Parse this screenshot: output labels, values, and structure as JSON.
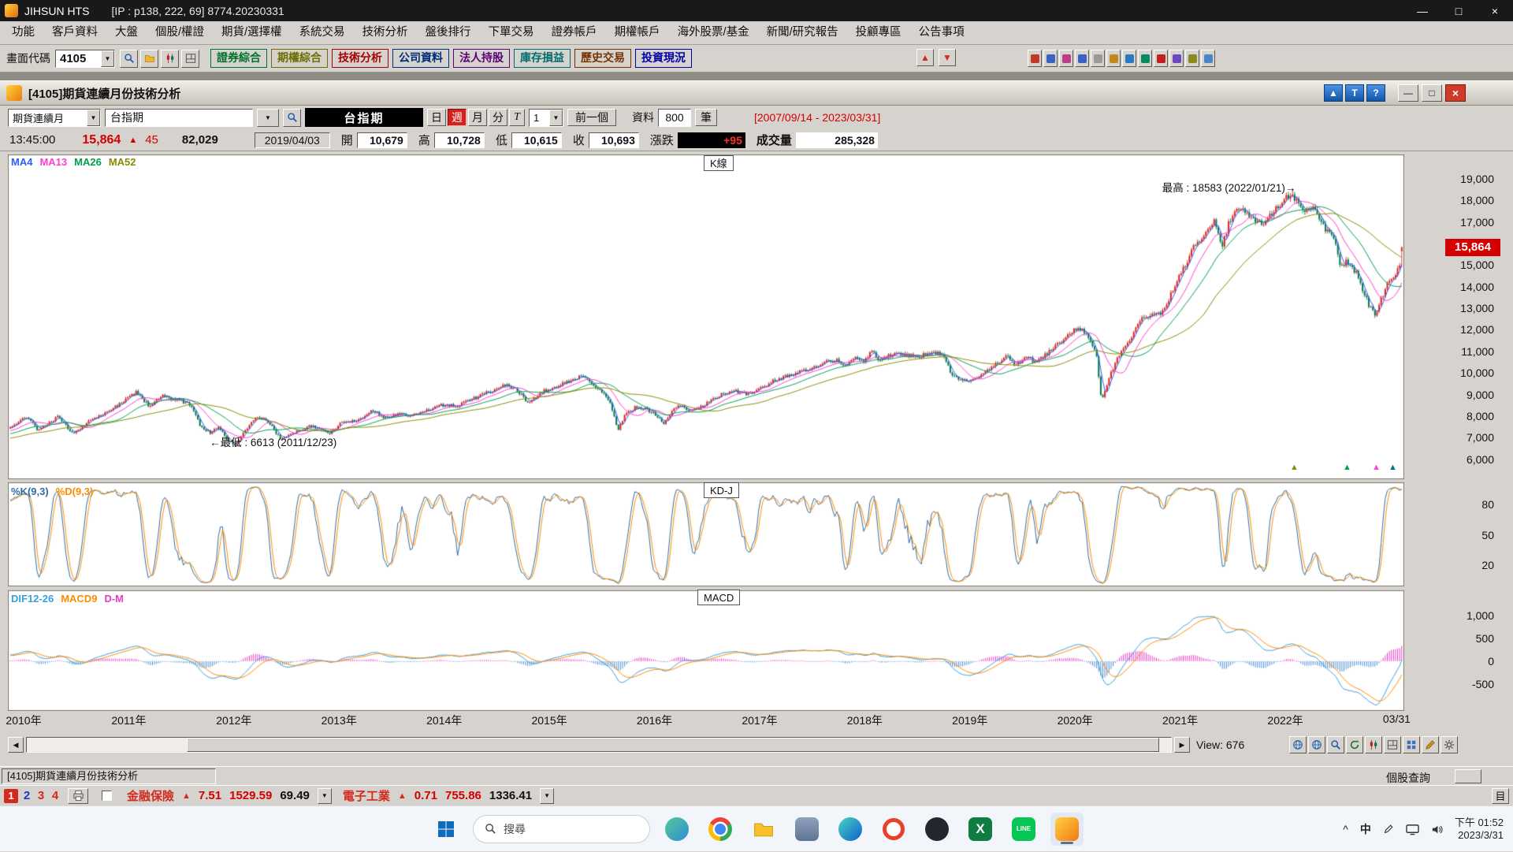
{
  "titlebar": {
    "title": "JIHSUN HTS",
    "info": "[IP : p138, 222, 69] 8774.20230331",
    "buttons": {
      "minimize": "—",
      "maximize": "□",
      "close": "×"
    }
  },
  "menubar": {
    "items": [
      "功能",
      "客戶資料",
      "大盤",
      "個股/權證",
      "期貨/選擇權",
      "系統交易",
      "技術分析",
      "盤後排行",
      "下單交易",
      "證券帳戶",
      "期權帳戶",
      "海外股票/基金",
      "新聞/研究報告",
      "投顧專區",
      "公告事項"
    ]
  },
  "toolbar": {
    "screen_code_label": "畫面代碼",
    "screen_code_value": "4105",
    "icon_buttons": [
      {
        "name": "search-icon",
        "icon": "zoom"
      },
      {
        "name": "folder-icon",
        "icon": "folder"
      },
      {
        "name": "chart-icon",
        "icon": "candle"
      },
      {
        "name": "screen-icon",
        "icon": "layout"
      }
    ],
    "quick_buttons": [
      {
        "label": "證券綜合",
        "color": "#00702d"
      },
      {
        "label": "期權綜合",
        "color": "#6e6e00"
      },
      {
        "label": "技術分析",
        "color": "#a80000"
      },
      {
        "label": "公司資料",
        "color": "#002d78"
      },
      {
        "label": "法人持股",
        "color": "#5a0078"
      },
      {
        "label": "庫存損益",
        "color": "#006e6e"
      },
      {
        "label": "歷史交易",
        "color": "#783200"
      },
      {
        "label": "投資現況",
        "color": "#0000a8"
      }
    ],
    "order_buttons": [
      {
        "name": "buy-arrow-icon",
        "glyph": "▲"
      },
      {
        "name": "sell-arrow-icon",
        "glyph": "▼"
      }
    ],
    "mini_icon_colors": [
      "#c03a2a",
      "#3a62c0",
      "#c03a8a",
      "#3a62c0",
      "#9a9a9a",
      "#c08a20",
      "#2a7ac0",
      "#0a8a60",
      "#c02020",
      "#6a48c0",
      "#8a8a20",
      "#4a86c8"
    ]
  },
  "window": {
    "title": "[4105]期貨連續月份技術分析",
    "blue_buttons": [
      {
        "name": "pin-top-button",
        "glyph": "▲"
      },
      {
        "name": "template-button",
        "glyph": "T"
      },
      {
        "name": "help-button",
        "glyph": "?"
      }
    ],
    "controls": {
      "minimize": "—",
      "restore": "□",
      "close": "×"
    }
  },
  "controls": {
    "series_select": "期貨連續月",
    "symbol_input": "台指期",
    "symbol_display": "台指期",
    "period_buttons": [
      "日",
      "週",
      "月",
      "分",
      "T"
    ],
    "active_period": "週",
    "interval_value": "1",
    "prev_button": "前一個",
    "data_label": "資料",
    "data_count": "800",
    "unit_button": "筆",
    "date_range": "[2007/09/14 - 2023/03/31]"
  },
  "quote": {
    "time": "13:45:00",
    "price": "15,864",
    "change_icon": "▲",
    "change": "45",
    "volume_total": "82,029",
    "bar_date": "2019/04/03",
    "open_label": "開",
    "open": "10,679",
    "high_label": "高",
    "high": "10,728",
    "low_label": "低",
    "low": "10,615",
    "close_label": "收",
    "close": "10,693",
    "chg_label": "漲跌",
    "chg": "+95",
    "vol_label": "成交量",
    "vol": "285,328"
  },
  "chart_data": {
    "type": "candlestick",
    "title": "[4105]期貨連續月份技術分析",
    "symbol": "台指期",
    "period": "週",
    "bar_count": 676,
    "start_year": 2009.85,
    "bars_per_year": 51,
    "ylim": [
      5100,
      20150
    ],
    "price_ticks": [
      "19,000",
      "18,000",
      "17,000",
      "15,000",
      "14,000",
      "13,000",
      "12,000",
      "11,000",
      "10,000",
      "9,000",
      "8,000",
      "7,000",
      "6,000"
    ],
    "price_tick_values": [
      19000,
      18000,
      17000,
      15000,
      14000,
      13000,
      12000,
      11000,
      10000,
      9000,
      8000,
      7000,
      6000
    ],
    "last_price": "15,864",
    "last_price_value": 15864,
    "annotations": {
      "high": {
        "display": "最高 : 18583 (2022/01/21)→",
        "value": 18583,
        "year": 2022.055
      },
      "low": {
        "display": "←最低 : 6613 (2011/12/23)",
        "value": 6613,
        "year": 2011.98
      }
    },
    "panel_labels": {
      "main": "K線",
      "kd": "KD-J",
      "macd": "MACD"
    },
    "legends": {
      "ma": [
        {
          "label": "MA4",
          "color": "#2e5cff"
        },
        {
          "label": "MA13",
          "color": "#ff3dcf"
        },
        {
          "label": "MA26",
          "color": "#00a050"
        },
        {
          "label": "MA52",
          "color": "#8a8a00"
        }
      ],
      "kd": [
        {
          "label": "%K(9,3)",
          "color": "#2e6ea5"
        },
        {
          "label": "%D(9,3)",
          "color": "#ff8c00"
        }
      ],
      "macd": [
        {
          "label": "DIF12-26",
          "color": "#3aa0dc"
        },
        {
          "label": "MACD9",
          "color": "#ff8c00"
        },
        {
          "label": "D-M",
          "color": "#e83cc8"
        }
      ]
    },
    "kd_ticks": [
      80,
      50,
      20
    ],
    "macd_ticks": [
      "1,000",
      "500",
      "0",
      "-500"
    ],
    "macd_tick_values": [
      1000,
      500,
      0,
      -500
    ],
    "macd_ylim": [
      -1090,
      1550
    ],
    "x_ticks": [
      {
        "label": "2010年",
        "year": 2010
      },
      {
        "label": "2011年",
        "year": 2011
      },
      {
        "label": "2012年",
        "year": 2012
      },
      {
        "label": "2013年",
        "year": 2013
      },
      {
        "label": "2014年",
        "year": 2014
      },
      {
        "label": "2015年",
        "year": 2015
      },
      {
        "label": "2016年",
        "year": 2016
      },
      {
        "label": "2017年",
        "year": 2017
      },
      {
        "label": "2018年",
        "year": 2018
      },
      {
        "label": "2019年",
        "year": 2019
      },
      {
        "label": "2020年",
        "year": 2020
      },
      {
        "label": "2021年",
        "year": 2021
      },
      {
        "label": "2022年",
        "year": 2022
      },
      {
        "label": "03/31",
        "year": 2023.06
      }
    ],
    "colors": {
      "up": "#e0281e",
      "down": "#0c7a52",
      "hist_neg": "#4d8fd6"
    },
    "edge_markers": [
      "#8a8a00",
      "#00a050",
      "#ff3dcf",
      "#007878"
    ],
    "anchors": [
      [
        2008.7,
        6600
      ],
      [
        2009.3,
        6900
      ],
      [
        2009.7,
        7300
      ],
      [
        2009.85,
        7500
      ],
      [
        2010.0,
        8050
      ],
      [
        2010.12,
        7350
      ],
      [
        2010.3,
        8000
      ],
      [
        2010.45,
        7220
      ],
      [
        2010.6,
        7800
      ],
      [
        2010.75,
        8150
      ],
      [
        2010.92,
        8700
      ],
      [
        2011.05,
        9150
      ],
      [
        2011.17,
        8500
      ],
      [
        2011.3,
        8950
      ],
      [
        2011.5,
        8700
      ],
      [
        2011.58,
        8500
      ],
      [
        2011.65,
        7650
      ],
      [
        2011.75,
        7250
      ],
      [
        2011.83,
        7550
      ],
      [
        2011.9,
        7050
      ],
      [
        2011.98,
        6680
      ],
      [
        2012.1,
        7450
      ],
      [
        2012.2,
        8050
      ],
      [
        2012.3,
        7800
      ],
      [
        2012.42,
        7000
      ],
      [
        2012.55,
        7250
      ],
      [
        2012.7,
        7600
      ],
      [
        2012.8,
        7400
      ],
      [
        2012.88,
        7200
      ],
      [
        2013.0,
        7750
      ],
      [
        2013.15,
        7850
      ],
      [
        2013.3,
        8300
      ],
      [
        2013.42,
        7950
      ],
      [
        2013.55,
        8150
      ],
      [
        2013.65,
        8050
      ],
      [
        2013.8,
        8250
      ],
      [
        2013.95,
        8550
      ],
      [
        2014.1,
        8500
      ],
      [
        2014.25,
        8850
      ],
      [
        2014.45,
        9250
      ],
      [
        2014.55,
        9500
      ],
      [
        2014.68,
        9200
      ],
      [
        2014.78,
        8600
      ],
      [
        2014.9,
        9150
      ],
      [
        2015.05,
        9400
      ],
      [
        2015.2,
        9750
      ],
      [
        2015.3,
        9900
      ],
      [
        2015.45,
        9300
      ],
      [
        2015.55,
        8750
      ],
      [
        2015.63,
        7400
      ],
      [
        2015.7,
        8100
      ],
      [
        2015.8,
        8450
      ],
      [
        2015.9,
        8350
      ],
      [
        2015.97,
        8150
      ],
      [
        2016.07,
        7700
      ],
      [
        2016.2,
        8600
      ],
      [
        2016.32,
        8250
      ],
      [
        2016.45,
        8550
      ],
      [
        2016.6,
        9000
      ],
      [
        2016.75,
        9200
      ],
      [
        2016.85,
        9050
      ],
      [
        2016.97,
        9250
      ],
      [
        2017.1,
        9650
      ],
      [
        2017.25,
        9900
      ],
      [
        2017.4,
        10150
      ],
      [
        2017.55,
        10450
      ],
      [
        2017.7,
        10650
      ],
      [
        2017.78,
        10400
      ],
      [
        2017.88,
        10700
      ],
      [
        2017.97,
        10600
      ],
      [
        2018.05,
        11050
      ],
      [
        2018.12,
        10550
      ],
      [
        2018.25,
        10950
      ],
      [
        2018.4,
        10850
      ],
      [
        2018.5,
        10800
      ],
      [
        2018.6,
        11000
      ],
      [
        2018.72,
        10950
      ],
      [
        2018.8,
        9950
      ],
      [
        2018.88,
        9700
      ],
      [
        2018.97,
        9650
      ],
      [
        2019.1,
        10050
      ],
      [
        2019.25,
        10500
      ],
      [
        2019.33,
        10850
      ],
      [
        2019.42,
        10400
      ],
      [
        2019.52,
        10800
      ],
      [
        2019.6,
        10550
      ],
      [
        2019.72,
        10950
      ],
      [
        2019.85,
        11500
      ],
      [
        2019.97,
        12000
      ],
      [
        2020.05,
        12100
      ],
      [
        2020.12,
        11450
      ],
      [
        2020.18,
        11000
      ],
      [
        2020.23,
        8700
      ],
      [
        2020.3,
        9800
      ],
      [
        2020.4,
        10900
      ],
      [
        2020.5,
        11600
      ],
      [
        2020.6,
        12550
      ],
      [
        2020.7,
        12700
      ],
      [
        2020.8,
        12850
      ],
      [
        2020.9,
        13750
      ],
      [
        2020.98,
        14600
      ],
      [
        2021.1,
        15800
      ],
      [
        2021.2,
        16250
      ],
      [
        2021.3,
        17200
      ],
      [
        2021.37,
        15900
      ],
      [
        2021.45,
        17100
      ],
      [
        2021.55,
        17700
      ],
      [
        2021.65,
        17300
      ],
      [
        2021.75,
        16900
      ],
      [
        2021.82,
        17200
      ],
      [
        2021.9,
        17750
      ],
      [
        2021.98,
        18100
      ],
      [
        2022.04,
        18350
      ],
      [
        2022.08,
        18050
      ],
      [
        2022.15,
        17600
      ],
      [
        2022.23,
        17750
      ],
      [
        2022.3,
        17150
      ],
      [
        2022.38,
        16600
      ],
      [
        2022.45,
        16300
      ],
      [
        2022.5,
        15000
      ],
      [
        2022.57,
        15200
      ],
      [
        2022.65,
        14700
      ],
      [
        2022.72,
        13800
      ],
      [
        2022.78,
        13100
      ],
      [
        2022.83,
        12700
      ],
      [
        2022.9,
        13600
      ],
      [
        2022.97,
        14350
      ],
      [
        2023.05,
        14800
      ],
      [
        2023.12,
        15400
      ],
      [
        2023.18,
        15250
      ],
      [
        2023.25,
        15864
      ]
    ]
  },
  "scrollbar": {
    "left_arrow": "◀",
    "right_arrow": "▶",
    "view_label": "View: 676",
    "icons": [
      "globe",
      "globe",
      "zoom",
      "refresh",
      "candle",
      "layout",
      "grid",
      "pencil",
      "gear"
    ]
  },
  "statusbar": {
    "left": "[4105]期貨連續月份技術分析",
    "right": "個股查詢"
  },
  "ticker": {
    "pages": [
      {
        "label": "1"
      },
      {
        "label": "2",
        "color": "#2038c8"
      },
      {
        "label": "3",
        "color": "#d42a1e"
      },
      {
        "label": "4",
        "color": "#d42a1e"
      }
    ],
    "groups": [
      {
        "name": "金融保險",
        "arrow": "▲",
        "change": "7.51",
        "value": "1529.59",
        "extra": "69.49"
      },
      {
        "name": "電子工業",
        "arrow": "▲",
        "change": "0.71",
        "value": "755.86",
        "extra": "1336.41"
      }
    ],
    "side_tab": "目"
  },
  "taskbar": {
    "search_placeholder": "搜尋",
    "apps": [
      {
        "name": "widgets-icon"
      },
      {
        "name": "chrome-icon"
      },
      {
        "name": "file-explorer-icon"
      },
      {
        "name": "app-blue-gray-icon"
      },
      {
        "name": "edge-icon"
      },
      {
        "name": "opera-icon"
      },
      {
        "name": "dark-app-icon"
      },
      {
        "name": "excel-icon",
        "glyph": "X"
      },
      {
        "name": "line-icon",
        "glyph": "LINE"
      },
      {
        "name": "jihsun-icon",
        "active": true
      }
    ],
    "tray_caret": "^",
    "tray_ime": "中",
    "time_line1": "下午 01:52",
    "time_line2": "2023/3/31"
  }
}
